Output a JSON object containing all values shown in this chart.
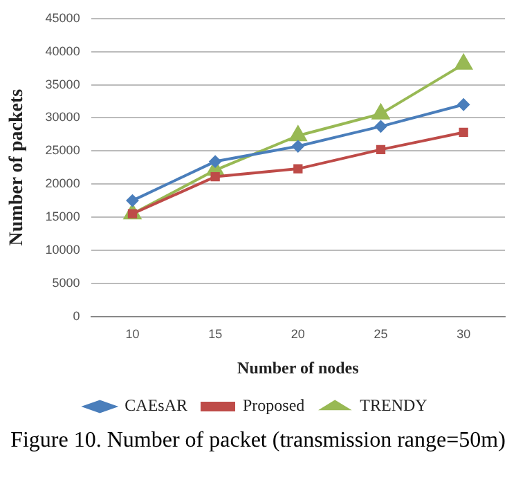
{
  "chart_data": {
    "type": "line",
    "title": "Figure 10. Number of packet (transmission range=50m)",
    "xlabel": "Number of nodes",
    "ylabel": "Number of packets",
    "categories": [
      "10",
      "15",
      "20",
      "25",
      "30"
    ],
    "series": [
      {
        "name": "CAEsAR",
        "color": "#4a7ebb",
        "marker": "diamond",
        "values": [
          17500,
          23400,
          25700,
          28700,
          32000
        ]
      },
      {
        "name": "Proposed",
        "color": "#be4b48",
        "marker": "square",
        "values": [
          15500,
          21100,
          22300,
          25200,
          27800
        ]
      },
      {
        "name": "TRENDY",
        "color": "#98b954",
        "marker": "triangle",
        "values": [
          15500,
          22100,
          27300,
          30600,
          38100
        ]
      }
    ],
    "ylim": [
      0,
      45000
    ],
    "yticks": [
      0,
      5000,
      10000,
      15000,
      20000,
      25000,
      30000,
      35000,
      40000,
      45000
    ],
    "grid": "y",
    "legend": "bottom",
    "line_style": "solid"
  }
}
